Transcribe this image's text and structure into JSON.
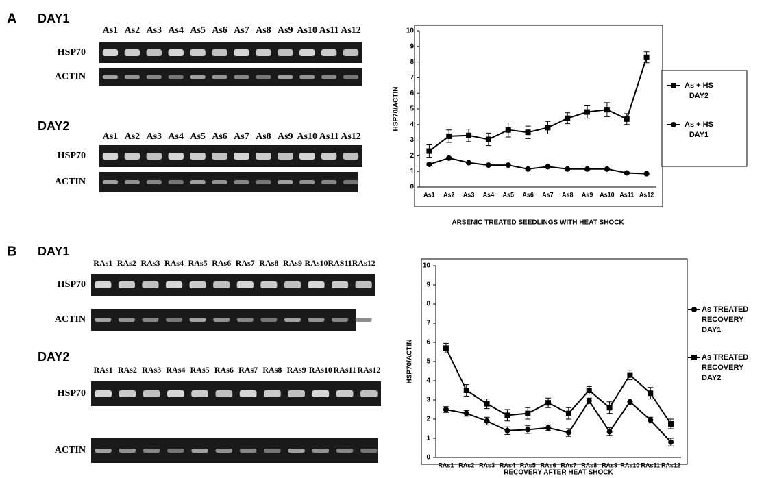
{
  "panels": [
    {
      "label": "A",
      "gels": [
        {
          "day": "DAY1",
          "lanes": [
            "As1",
            "As2",
            "As3",
            "As4",
            "As5",
            "As6",
            "As7",
            "As8",
            "As9",
            "As10",
            "As11",
            "As12"
          ],
          "rows": [
            "HSP70",
            "ACTIN"
          ]
        },
        {
          "day": "DAY2",
          "lanes": [
            "As1",
            "As2",
            "As3",
            "As4",
            "As5",
            "As6",
            "As7",
            "As8",
            "As9",
            "As10",
            "As11",
            "As12"
          ],
          "rows": [
            "HSP70",
            "ACTIN"
          ]
        }
      ]
    },
    {
      "label": "B",
      "gels": [
        {
          "day": "DAY1",
          "lanes": [
            "RAs1",
            "RAs2",
            "RAs3",
            "RAs4",
            "RAs5",
            "RAs6",
            "RAs7",
            "RAs8",
            "RAs9",
            "RAs10",
            "RAS11",
            "RAs12"
          ],
          "rows": [
            "HSP70",
            "ACTIN"
          ]
        },
        {
          "day": "DAY2",
          "lanes": [
            "RAs1",
            "RAs2",
            "RAs3",
            "RAs4",
            "RAs5",
            "RAs6",
            "RAs7",
            "RAs8",
            "RAs9",
            "RAs10",
            "RAs11",
            "RAs12"
          ],
          "rows": [
            "HSP70",
            "ACTIN"
          ]
        }
      ]
    }
  ],
  "chart_data": [
    {
      "type": "line",
      "y_label": "HSP70/ACTIN",
      "x_label": "ARSENIC TREATED SEEDLINGS WITH HEAT SHOCK",
      "categories": [
        "As1",
        "As2",
        "As3",
        "As4",
        "As5",
        "As6",
        "As7",
        "As8",
        "As9",
        "As10",
        "As11",
        "As12"
      ],
      "ylim": [
        0,
        10
      ],
      "yticks": [
        0,
        1,
        2,
        3,
        4,
        5,
        6,
        7,
        8,
        9,
        10
      ],
      "series": [
        {
          "name": "As + HS DAY2",
          "color": "#000000",
          "marker": "square",
          "values": [
            2.3,
            3.25,
            3.3,
            3.05,
            3.65,
            3.5,
            3.8,
            4.4,
            4.8,
            4.95,
            4.35,
            8.3
          ],
          "errors": [
            0.4,
            0.4,
            0.4,
            0.4,
            0.45,
            0.4,
            0.4,
            0.35,
            0.4,
            0.45,
            0.35,
            0.35
          ]
        },
        {
          "name": "As + HS DAY1",
          "color": "#000000",
          "marker": "circle",
          "values": [
            1.45,
            1.85,
            1.55,
            1.4,
            1.4,
            1.15,
            1.3,
            1.15,
            1.15,
            1.15,
            0.9,
            0.85
          ],
          "errors": [
            0.05,
            0.05,
            0.05,
            0.05,
            0.05,
            0.05,
            0.05,
            0.05,
            0.05,
            0.05,
            0.05,
            0.05
          ]
        }
      ]
    },
    {
      "type": "line",
      "y_label": "HSP70/ACTIN",
      "x_label": "RECOVERY AFTER HEAT SHOCK",
      "categories": [
        "RAs1",
        "RAs2",
        "RAs3",
        "RAs4",
        "RAs5",
        "RAs6",
        "RAs7",
        "RAs8",
        "RAs9",
        "RAs10",
        "RAs11",
        "RAs12"
      ],
      "ylim": [
        0,
        10
      ],
      "yticks": [
        0,
        1,
        2,
        3,
        4,
        5,
        6,
        7,
        8,
        9,
        10
      ],
      "series": [
        {
          "name": "As TREATED RECOVERY DAY1",
          "color": "#000000",
          "marker": "circle",
          "values": [
            2.5,
            2.3,
            1.9,
            1.4,
            1.45,
            1.55,
            1.3,
            2.95,
            1.35,
            2.9,
            1.95,
            0.8
          ],
          "errors": [
            0.15,
            0.15,
            0.2,
            0.2,
            0.2,
            0.15,
            0.2,
            0.15,
            0.2,
            0.15,
            0.15,
            0.2
          ]
        },
        {
          "name": "As TREATED RECOVERY DAY2",
          "color": "#000000",
          "marker": "square",
          "values": [
            5.7,
            3.5,
            2.8,
            2.2,
            2.3,
            2.85,
            2.3,
            3.5,
            2.6,
            4.3,
            3.35,
            1.75
          ],
          "errors": [
            0.25,
            0.3,
            0.25,
            0.3,
            0.3,
            0.25,
            0.3,
            0.2,
            0.3,
            0.25,
            0.3,
            0.25
          ]
        }
      ]
    }
  ]
}
